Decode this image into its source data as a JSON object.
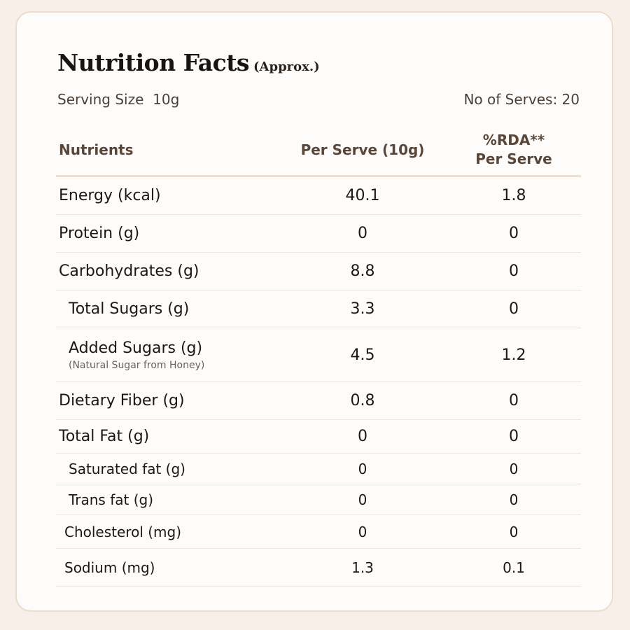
{
  "title": {
    "main": "Nutrition Facts",
    "sub": "(Approx.)"
  },
  "serving": {
    "size": "Serving Size  10g",
    "serves": "No of Serves: 20"
  },
  "table": {
    "headers": {
      "nutrients": "Nutrients",
      "per_serve": "Per Serve (10g)",
      "rda_line1": "%RDA**",
      "rda_line2": "Per Serve"
    },
    "rows": [
      {
        "name": "Energy (kcal)",
        "per_serve": "40.1",
        "rda": "1.8"
      },
      {
        "name": "Protein (g)",
        "per_serve": "0",
        "rda": "0"
      },
      {
        "name": "Carbohydrates (g)",
        "per_serve": "8.8",
        "rda": "0"
      },
      {
        "name": "Total Sugars (g)",
        "per_serve": "3.3",
        "rda": "0"
      },
      {
        "name": "Added Sugars (g)",
        "note": "(Natural Sugar from Honey)",
        "per_serve": "4.5",
        "rda": "1.2"
      },
      {
        "name": "Dietary Fiber (g)",
        "per_serve": "0.8",
        "rda": "0"
      },
      {
        "name": "Total Fat (g)",
        "per_serve": "0",
        "rda": "0"
      },
      {
        "name": "Saturated fat (g)",
        "per_serve": "0",
        "rda": "0"
      },
      {
        "name": "Trans fat (g)",
        "per_serve": "0",
        "rda": "0"
      },
      {
        "name": "Cholesterol (mg)",
        "per_serve": "0",
        "rda": "0"
      },
      {
        "name": "Sodium (mg)",
        "per_serve": "1.3",
        "rda": "0.1"
      }
    ]
  }
}
